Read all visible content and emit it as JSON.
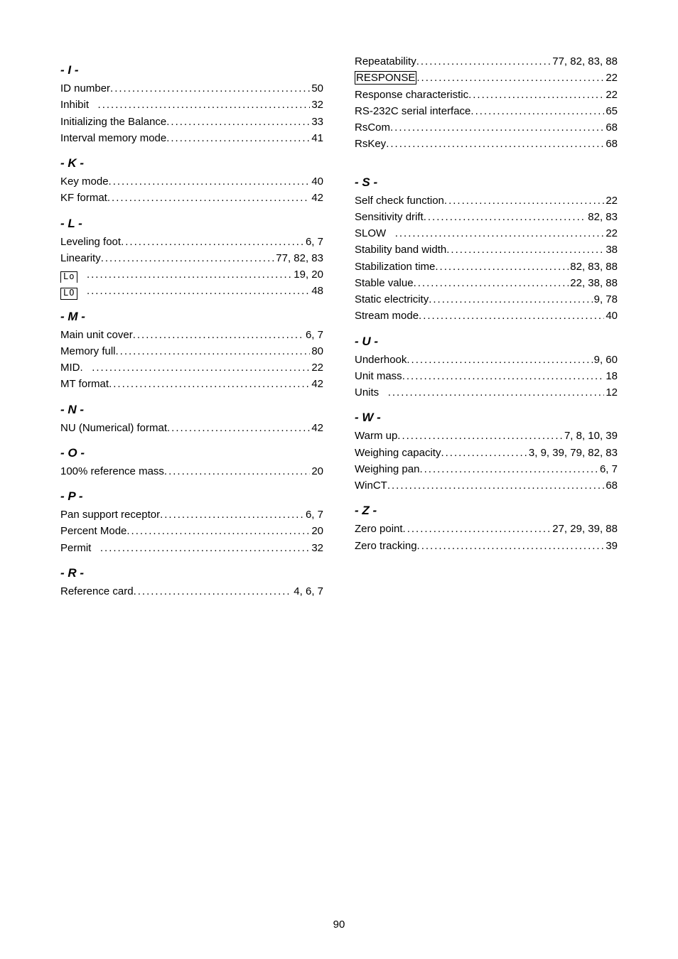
{
  "page_number": "90",
  "left": [
    {
      "type": "head",
      "text": "- I -"
    },
    {
      "type": "entry",
      "label": "ID number",
      "pages": "50"
    },
    {
      "type": "entry",
      "label": "Inhibit",
      "pad": true,
      "pages": "32"
    },
    {
      "type": "entry",
      "label": "Initializing the Balance",
      "pages": "33"
    },
    {
      "type": "entry",
      "label": "Interval memory mode",
      "pages": "41"
    },
    {
      "type": "head",
      "text": "- K -"
    },
    {
      "type": "entry",
      "label": "Key mode",
      "pages": "40"
    },
    {
      "type": "entry",
      "label": "KF format",
      "pages": "42"
    },
    {
      "type": "head",
      "text": "- L -"
    },
    {
      "type": "entry",
      "label": "Leveling foot",
      "pages": "6, 7"
    },
    {
      "type": "entry",
      "label": "Linearity",
      "pages": "77, 82, 83"
    },
    {
      "type": "entry",
      "iconbox": "Lo",
      "pad": true,
      "pages": "19, 20"
    },
    {
      "type": "entry",
      "iconbox": "LO",
      "pad": true,
      "pages": "48"
    },
    {
      "type": "head",
      "text": "- M -"
    },
    {
      "type": "entry",
      "label": "Main unit cover",
      "pages": "6, 7"
    },
    {
      "type": "entry",
      "label": "Memory full",
      "pages": "80"
    },
    {
      "type": "entry",
      "label": "MID.",
      "pad": true,
      "pages": "22"
    },
    {
      "type": "entry",
      "label": "MT format",
      "pages": "42"
    },
    {
      "type": "head",
      "text": "- N -"
    },
    {
      "type": "entry",
      "label": "NU (Numerical) format",
      "pages": "42"
    },
    {
      "type": "head",
      "text": "- O -"
    },
    {
      "type": "entry",
      "label": "100% reference mass",
      "pages": "20"
    },
    {
      "type": "head",
      "text": "- P -"
    },
    {
      "type": "entry",
      "label": "Pan support receptor",
      "pages": "6, 7"
    },
    {
      "type": "entry",
      "label": "Percent Mode",
      "pages": "20"
    },
    {
      "type": "entry",
      "label": "Permit",
      "pad": true,
      "pages": "32"
    },
    {
      "type": "head",
      "text": "- R -"
    },
    {
      "type": "entry",
      "label": "Reference card",
      "pages": "4, 6, 7"
    }
  ],
  "right": [
    {
      "type": "entry",
      "label": "Repeatability",
      "pages": "77, 82, 83, 88"
    },
    {
      "type": "entry",
      "boxed": "RESPONSE",
      "pages": "22"
    },
    {
      "type": "entry",
      "label": "Response characteristic",
      "pages": "22"
    },
    {
      "type": "entry",
      "label": "RS-232C serial interface",
      "pages": "65"
    },
    {
      "type": "entry",
      "label": "RsCom",
      "pages": "68"
    },
    {
      "type": "entry",
      "label": "RsKey",
      "pages": "68"
    },
    {
      "type": "spacer"
    },
    {
      "type": "head",
      "text": "- S -"
    },
    {
      "type": "entry",
      "label": "Self check function",
      "pages": "22"
    },
    {
      "type": "entry",
      "label": "Sensitivity drift",
      "pages": "82, 83"
    },
    {
      "type": "entry",
      "label": "SLOW",
      "pad": true,
      "pages": "22"
    },
    {
      "type": "entry",
      "label": "Stability band width",
      "pages": "38"
    },
    {
      "type": "entry",
      "label": "Stabilization time",
      "pages": "82, 83, 88"
    },
    {
      "type": "entry",
      "label": "Stable value",
      "pages": "22, 38, 88"
    },
    {
      "type": "entry",
      "label": "Static electricity",
      "pages": "9, 78"
    },
    {
      "type": "entry",
      "label": "Stream mode",
      "pages": "40"
    },
    {
      "type": "head",
      "text": "- U -"
    },
    {
      "type": "entry",
      "label": "Underhook",
      "pages": "9, 60"
    },
    {
      "type": "entry",
      "label": "Unit mass",
      "pages": "18"
    },
    {
      "type": "entry",
      "label": "Units",
      "pad": true,
      "pages": "12"
    },
    {
      "type": "head",
      "text": "- W -"
    },
    {
      "type": "entry",
      "label": "Warm up",
      "pages": "7, 8, 10, 39"
    },
    {
      "type": "entry",
      "label": "Weighing capacity",
      "pages": "3, 9, 39, 79, 82, 83"
    },
    {
      "type": "entry",
      "label": "Weighing pan",
      "pages": "6, 7"
    },
    {
      "type": "entry",
      "label": "WinCT",
      "pages": "68"
    },
    {
      "type": "head",
      "text": "- Z -"
    },
    {
      "type": "entry",
      "label": "Zero point",
      "pages": "27, 29, 39, 88"
    },
    {
      "type": "entry",
      "label": "Zero tracking",
      "pages": "39"
    }
  ]
}
